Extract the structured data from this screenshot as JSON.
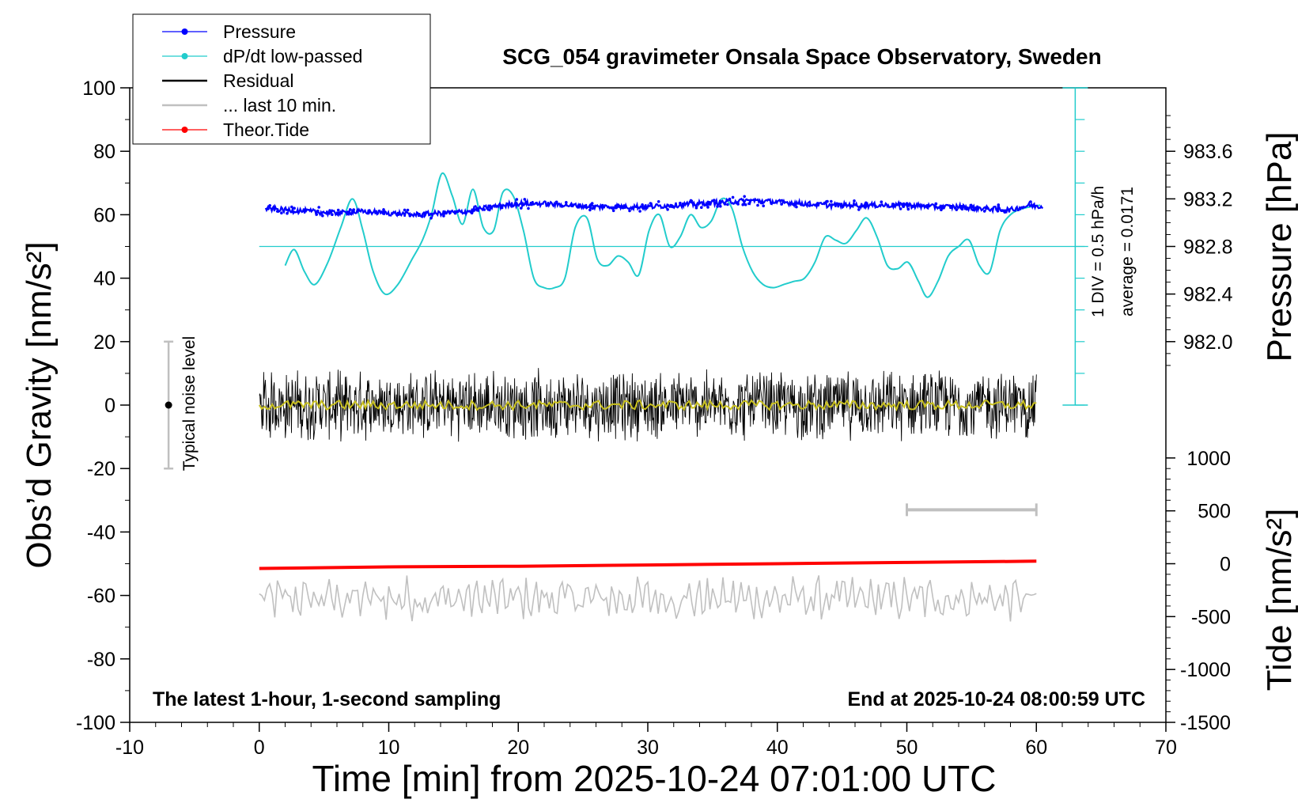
{
  "chart_data": {
    "type": "line",
    "title": "SCG_054 gravimeter Onsala Space Observatory, Sweden",
    "xlabel": "Time [min] from 2025-10-24 07:01:00 UTC",
    "ylabel_left": "Obs’d Gravity [nm/s²]",
    "ylabel_right_top": "Pressure [hPa]",
    "ylabel_right_bottom": "Tide [nm/s²]",
    "xlim": [
      -10,
      70
    ],
    "ylim": [
      -100,
      100
    ],
    "x_ticks": [
      "-10",
      "0",
      "10",
      "20",
      "30",
      "40",
      "50",
      "60",
      "70"
    ],
    "y_ticks": [
      "-100",
      "-80",
      "-60",
      "-40",
      "-20",
      "0",
      "20",
      "40",
      "60",
      "80",
      "100"
    ],
    "pressure_ticks": [
      "983.6",
      "983.2",
      "982.8",
      "982.4",
      "982.0"
    ],
    "tide_ticks": [
      "1000",
      "500",
      "0",
      "-500",
      "-1000",
      "-1500"
    ],
    "footer_left": "The latest 1-hour, 1-second sampling",
    "footer_right": "End at 2025-10-24 08:00:59 UTC",
    "noise_label": "Typical noise level",
    "dpdt_div_label": "1 DIV = 0.5 hPa/h",
    "dpdt_avg_label": "average = 0.0171",
    "legend": [
      {
        "label": "Pressure",
        "color": "#0000ff",
        "marker": true
      },
      {
        "label": "dP/dt low-passed",
        "color": "#22cccc",
        "marker": true
      },
      {
        "label": "Residual",
        "color": "#000000",
        "marker": false
      },
      {
        "label": "... last 10 min.",
        "color": "#c0c0c0",
        "marker": false
      },
      {
        "label": "Theor.Tide",
        "color": "#ff0000",
        "marker": true
      }
    ],
    "series": [
      {
        "name": "Pressure",
        "color": "#0000ff",
        "x": [
          0.5,
          2,
          4,
          6,
          8,
          10,
          12,
          14,
          16,
          18,
          20,
          22,
          24,
          26,
          28,
          30,
          32,
          34,
          36,
          38,
          40,
          42,
          44,
          46,
          48,
          50,
          52,
          54,
          56,
          58,
          59.5,
          60.5
        ],
        "y": [
          62,
          61.5,
          61,
          60.5,
          61,
          60.5,
          60,
          60.5,
          61,
          62.5,
          63.5,
          63.5,
          63,
          62.5,
          62.5,
          62.5,
          63,
          63.5,
          64,
          64.5,
          64,
          63.5,
          63,
          63,
          63,
          63,
          62.5,
          62.5,
          62,
          61.5,
          63,
          62.5
        ]
      },
      {
        "name": "dP/dt low-passed",
        "color": "#22cccc",
        "x": [
          2,
          2.7,
          3.5,
          4.3,
          5.3,
          6.3,
          7.2,
          8.0,
          8.8,
          9.7,
          10.7,
          11.8,
          12.6,
          13.3,
          14.1,
          14.9,
          15.7,
          16.5,
          17.3,
          18.1,
          18.8,
          19.6,
          20.4,
          21.2,
          22,
          22.8,
          23.6,
          24.4,
          25.3,
          26.1,
          26.9,
          27.7,
          28.5,
          29.3,
          30.1,
          30.9,
          31.7,
          32.5,
          33.3,
          34.1,
          34.9,
          35.7,
          36.5,
          37.3,
          38.1,
          38.9,
          39.7,
          40.5,
          41.3,
          42.1,
          42.9,
          43.7,
          44.5,
          45.3,
          46.1,
          46.9,
          47.7,
          48.5,
          49.3,
          50.1,
          50.9,
          51.6,
          52.4,
          53.2,
          54,
          54.8,
          55.6,
          56.4,
          57.2,
          58,
          59,
          60.3
        ],
        "y": [
          44,
          49,
          42,
          38,
          45,
          56,
          65,
          55,
          42,
          35,
          38,
          46,
          52,
          60,
          73,
          66,
          57,
          68,
          56,
          55,
          67,
          66,
          55,
          40,
          37,
          37,
          40,
          56,
          59,
          46,
          44,
          47,
          45,
          41,
          55,
          60,
          50,
          53,
          60,
          56,
          58,
          65,
          62,
          50,
          42,
          38,
          37,
          38,
          39,
          40,
          45,
          53,
          52,
          51,
          55,
          59,
          53,
          44,
          43,
          45,
          39,
          34,
          39,
          47,
          50,
          52,
          44,
          42,
          55,
          60,
          62,
          63
        ]
      },
      {
        "name": "Residual",
        "color": "#000000",
        "x_range": [
          0,
          60
        ],
        "mean": 0,
        "typical_amplitude": 10
      },
      {
        "name": "... last 10 min.",
        "color": "#c0c0c0",
        "x_range": [
          0,
          60
        ],
        "mean": -61,
        "typical_amplitude": 6
      },
      {
        "name": "Theor.Tide",
        "color": "#ff0000",
        "x": [
          0,
          10,
          20,
          30,
          40,
          50,
          60
        ],
        "y": [
          -51.5,
          -51,
          -50.8,
          -50.4,
          -50,
          -49.6,
          -49.2
        ]
      }
    ],
    "reference_lines": [
      {
        "name": "dP/dt zero line",
        "y": 50,
        "x_range": [
          0,
          64
        ],
        "color": "#22cccc"
      }
    ],
    "noise_bar": {
      "x": -7,
      "y_range": [
        -20,
        20
      ]
    },
    "last10_bar": {
      "x_range": [
        50,
        60
      ],
      "y": -33
    }
  }
}
